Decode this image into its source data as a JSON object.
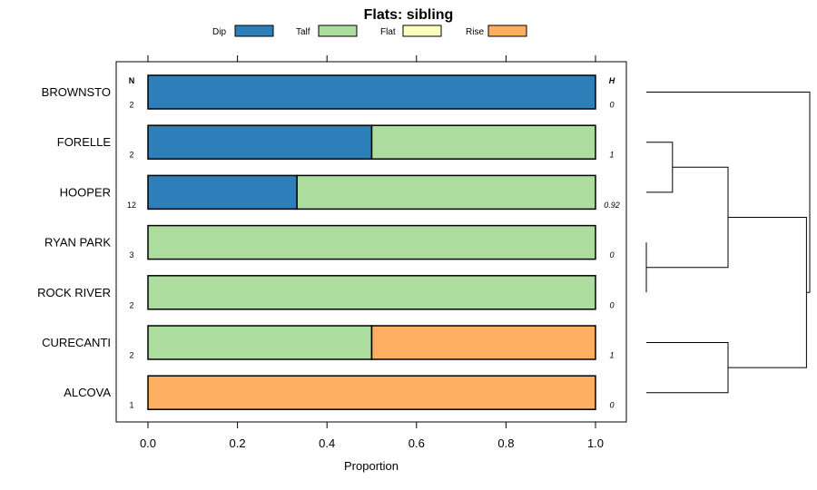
{
  "chart_data": {
    "type": "bar",
    "stacked": true,
    "orientation": "horizontal",
    "title": "Flats: sibling",
    "xlabel": "Proportion",
    "ylabel": "",
    "xlim": [
      0,
      1
    ],
    "xticks": [
      0,
      0.2,
      0.4,
      0.6,
      0.8,
      1
    ],
    "xtick_labels": [
      "0.0",
      "0.2",
      "0.4",
      "0.6",
      "0.8",
      "1.0"
    ],
    "legend_position": "top",
    "n_header": "N",
    "h_header": "H",
    "categories": [
      "BROWNSTO",
      "FORELLE",
      "HOOPER",
      "RYAN PARK",
      "ROCK RIVER",
      "CURECANTI",
      "ALCOVA"
    ],
    "n_values": [
      "2",
      "2",
      "12",
      "3",
      "2",
      "2",
      "1"
    ],
    "h_values": [
      "0",
      "1",
      "0.92",
      "0",
      "0",
      "1",
      "0"
    ],
    "series": [
      {
        "name": "Dip",
        "color": "#2c7fb8",
        "values": [
          1,
          0.5,
          0.333,
          0,
          0,
          0,
          0
        ]
      },
      {
        "name": "Talf",
        "color": "#addd9e",
        "values": [
          0,
          0.5,
          0.667,
          1,
          1,
          0.5,
          0
        ]
      },
      {
        "name": "Flat",
        "color": "#ffffbf",
        "values": [
          0,
          0,
          0,
          0,
          0,
          0,
          0
        ]
      },
      {
        "name": "Rise",
        "color": "#fdae61",
        "values": [
          0,
          0,
          0,
          0,
          0,
          0.5,
          1
        ]
      }
    ],
    "dendrogram": {
      "leaves": [
        "BROWNSTO",
        "FORELLE",
        "HOOPER",
        "RYAN PARK",
        "ROCK RIVER",
        "CURECANTI",
        "ALCOVA"
      ],
      "merges": [
        {
          "a": "RYAN PARK",
          "b": "ROCK RIVER",
          "height": 0.0
        },
        {
          "a": "FORELLE",
          "b": "HOOPER",
          "height": 0.16
        },
        {
          "a": "CURECANTI",
          "b": "ALCOVA",
          "height": 0.5
        },
        {
          "a": "FORELLE+HOOPER",
          "b": "RYAN PARK+ROCK RIVER",
          "height": 0.5
        },
        {
          "a": "FORELLE+HOOPER+RYAN PARK+ROCK RIVER",
          "b": "CURECANTI+ALCOVA",
          "height": 0.98
        },
        {
          "a": "BROWNSTO",
          "b": "REST",
          "height": 1.0
        }
      ]
    }
  }
}
